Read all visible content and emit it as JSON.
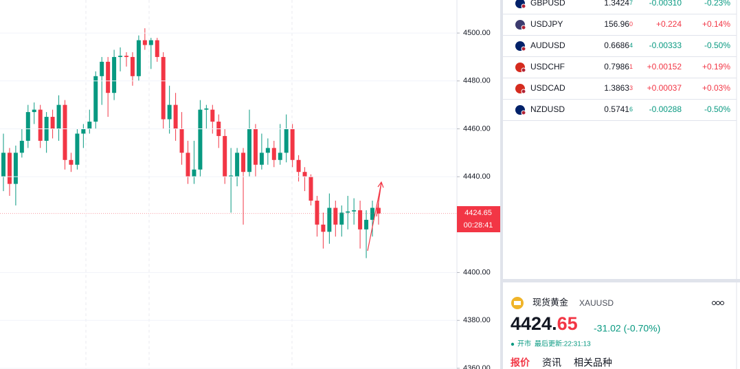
{
  "chart_data": {
    "type": "candlestick",
    "up_color": "#089981",
    "down_color": "#f23645",
    "ylim": [
      4359.7,
      4513.8
    ],
    "yticks": [
      {
        "value": 4500,
        "label": "4500.00"
      },
      {
        "value": 4480,
        "label": "4480.00"
      },
      {
        "value": 4460,
        "label": "4460.00"
      },
      {
        "value": 4440,
        "label": "4440.00"
      },
      {
        "value": 4400,
        "label": "4400.00"
      },
      {
        "value": 4380,
        "label": "4380.00"
      },
      {
        "value": 4360,
        "label": "4360.00"
      }
    ],
    "grid": true,
    "last_price": {
      "value": 4424.65,
      "label": "4424.65",
      "countdown": "00:28:41"
    },
    "candles": [
      [
        4440,
        4458,
        4434,
        4450
      ],
      [
        4450,
        4452,
        4432,
        4437
      ],
      [
        4437,
        4453,
        4428,
        4450
      ],
      [
        4450,
        4460,
        4448,
        4455
      ],
      [
        4455,
        4470,
        4452,
        4467
      ],
      [
        4467,
        4471,
        4462,
        4468
      ],
      [
        4468,
        4470,
        4452,
        4455
      ],
      [
        4455,
        4467,
        4450,
        4465
      ],
      [
        4465,
        4468,
        4456,
        4460
      ],
      [
        4460,
        4474,
        4455,
        4470
      ],
      [
        4470,
        4472,
        4443,
        4447
      ],
      [
        4447,
        4450,
        4442,
        4445
      ],
      [
        4445,
        4460,
        4443,
        4458
      ],
      [
        4458,
        4462,
        4452,
        4460
      ],
      [
        4460,
        4468,
        4458,
        4463
      ],
      [
        4463,
        4484,
        4460,
        4482
      ],
      [
        4482,
        4490,
        4470,
        4488
      ],
      [
        4488,
        4490,
        4465,
        4475
      ],
      [
        4475,
        4493,
        4472,
        4490
      ],
      [
        4490,
        4494,
        4484,
        4490.5
      ],
      [
        4490.5,
        4492,
        4486,
        4490
      ],
      [
        4490,
        4492,
        4478,
        4482
      ],
      [
        4482,
        4499,
        4480,
        4497
      ],
      [
        4497,
        4502,
        4493,
        4495
      ],
      [
        4495,
        4498,
        4485,
        4497
      ],
      [
        4497,
        4498,
        4488,
        4490
      ],
      [
        4490,
        4492,
        4460,
        4464
      ],
      [
        4464,
        4478,
        4458,
        4470
      ],
      [
        4470,
        4475,
        4455,
        4460
      ],
      [
        4460,
        4467,
        4445,
        4450
      ],
      [
        4450,
        4455,
        4437,
        4440
      ],
      [
        4440,
        4455,
        4437,
        4443
      ],
      [
        4443,
        4472,
        4440,
        4468
      ],
      [
        4468,
        4470,
        4460,
        4468.5
      ],
      [
        4468,
        4470,
        4458,
        4463
      ],
      [
        4463,
        4466,
        4452,
        4457
      ],
      [
        4457,
        4460,
        4437,
        4440
      ],
      [
        4440,
        4452,
        4425,
        4440.5
      ],
      [
        4440,
        4452,
        4436,
        4450
      ],
      [
        4450,
        4452,
        4420,
        4442
      ],
      [
        4442,
        4468,
        4440,
        4460
      ],
      [
        4460,
        4462,
        4440,
        4445
      ],
      [
        4445,
        4458,
        4443,
        4450
      ],
      [
        4450,
        4456,
        4445,
        4452
      ],
      [
        4452,
        4455,
        4444,
        4447
      ],
      [
        4447,
        4462,
        4445,
        4450
      ],
      [
        4450,
        4466,
        4446,
        4460
      ],
      [
        4460,
        4462,
        4444,
        4447
      ],
      [
        4447,
        4449,
        4438,
        4442
      ],
      [
        4442,
        4444,
        4434,
        4440
      ],
      [
        4440,
        4441,
        4428,
        4430
      ],
      [
        4430,
        4432,
        4415,
        4420
      ],
      [
        4420,
        4425,
        4410,
        4417
      ],
      [
        4417,
        4433,
        4412,
        4427
      ],
      [
        4427,
        4430,
        4415,
        4420
      ],
      [
        4420,
        4428,
        4415,
        4425
      ],
      [
        4425,
        4432,
        4418,
        4425.5
      ],
      [
        4425.5,
        4431,
        4420,
        4426
      ],
      [
        4426,
        4430,
        4410,
        4418
      ],
      [
        4418,
        4426,
        4406,
        4422
      ],
      [
        4422,
        4430,
        4415,
        4427
      ],
      [
        4427,
        4430,
        4420,
        4424.65
      ]
    ]
  },
  "watchlist": [
    {
      "symbol": "GBPUSD",
      "price": "1.3424",
      "price_tail": "7",
      "change": "-0.00310",
      "percent": "-0.23%"
    },
    {
      "symbol": "USDJPY",
      "price": "156.96",
      "price_tail": "0",
      "change": "+0.224",
      "percent": "+0.14%"
    },
    {
      "symbol": "AUDUSD",
      "price": "0.6686",
      "price_tail": "4",
      "change": "-0.00333",
      "percent": "-0.50%"
    },
    {
      "symbol": "USDCHF",
      "price": "0.7986",
      "price_tail": "1",
      "change": "+0.00152",
      "percent": "+0.19%"
    },
    {
      "symbol": "USDCAD",
      "price": "1.3863",
      "price_tail": "3",
      "change": "+0.00037",
      "percent": "+0.03%"
    },
    {
      "symbol": "NZDUSD",
      "price": "0.5741",
      "price_tail": "6",
      "change": "-0.00288",
      "percent": "-0.50%"
    }
  ],
  "symbol_panel": {
    "name": "现货黄金",
    "ticker": "XAUUSD",
    "price_main": "4424.",
    "price_decimals": "65",
    "change": "-31.02 (-0.70%)",
    "status": "开市",
    "updated": "最后更新:22:31:13",
    "tabs": [
      "报价",
      "资讯",
      "相关品种"
    ]
  }
}
